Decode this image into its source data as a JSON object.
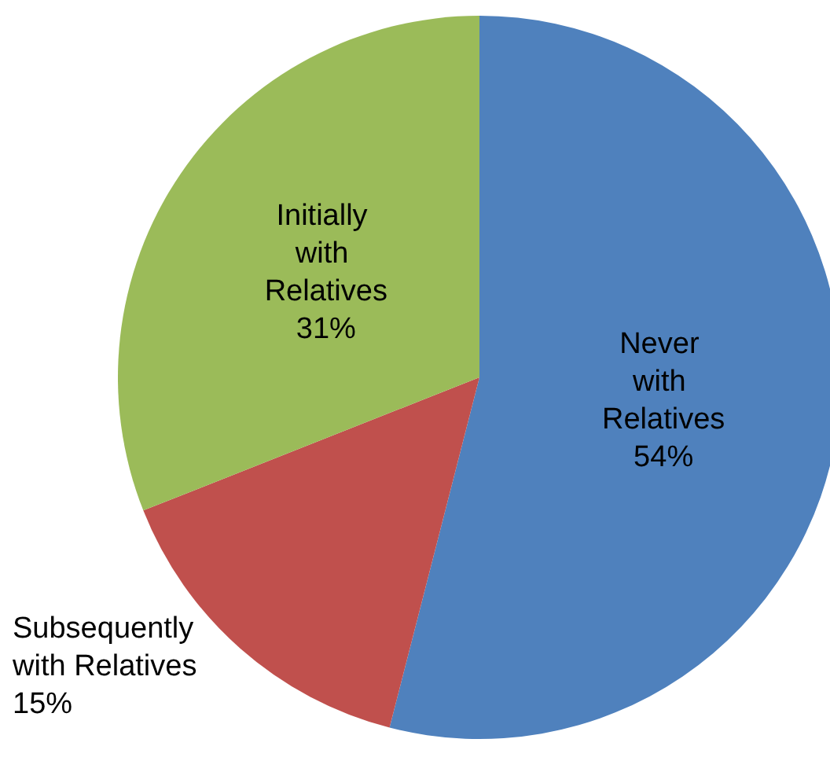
{
  "chart_data": {
    "type": "pie",
    "categories": [
      "Never with Relatives",
      "Subsequently with Relatives",
      "Initially with Relatives"
    ],
    "values": [
      54,
      15,
      31
    ],
    "value_labels": [
      "54%",
      "15%",
      "31%"
    ],
    "colors": [
      "#4f81bd",
      "#c0504d",
      "#9bbb59"
    ],
    "legend": false
  }
}
